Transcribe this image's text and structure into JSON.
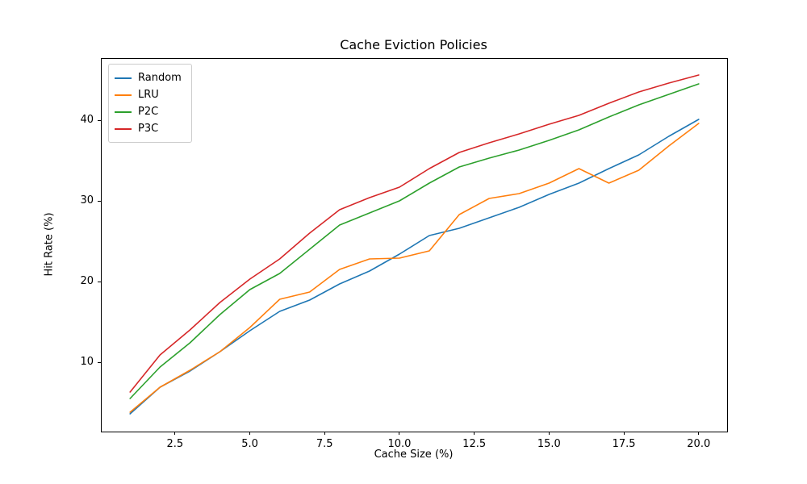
{
  "chart_data": {
    "type": "line",
    "title": "Cache Eviction Policies",
    "xlabel": "Cache Size (%)",
    "ylabel": "Hit Rate (%)",
    "grid": false,
    "legend_position": "upper left",
    "xlim": [
      0.05,
      20.95
    ],
    "ylim": [
      1.4,
      47.6
    ],
    "xticks": [
      2.5,
      5.0,
      7.5,
      10.0,
      12.5,
      15.0,
      17.5,
      20.0
    ],
    "xtick_labels": [
      "2.5",
      "5.0",
      "7.5",
      "10.0",
      "12.5",
      "15.0",
      "17.5",
      "20.0"
    ],
    "yticks": [
      10,
      20,
      30,
      40
    ],
    "ytick_labels": [
      "10",
      "20",
      "30",
      "40"
    ],
    "x": [
      1,
      2,
      3,
      4,
      5,
      6,
      7,
      8,
      9,
      10,
      11,
      12,
      13,
      14,
      15,
      16,
      17,
      18,
      19,
      20
    ],
    "series": [
      {
        "name": "Random",
        "color": "#1f77b4",
        "values": [
          3.6,
          6.9,
          8.9,
          11.3,
          13.9,
          16.3,
          17.7,
          19.7,
          21.3,
          23.4,
          25.7,
          26.6,
          27.9,
          29.2,
          30.8,
          32.2,
          34.0,
          35.7,
          38.0,
          40.1
        ]
      },
      {
        "name": "LRU",
        "color": "#ff7f0e",
        "values": [
          3.8,
          6.9,
          9.0,
          11.3,
          14.3,
          17.8,
          18.7,
          21.5,
          22.8,
          22.9,
          23.8,
          28.3,
          30.3,
          30.9,
          32.2,
          34.0,
          32.2,
          33.8,
          36.8,
          39.6
        ]
      },
      {
        "name": "P2C",
        "color": "#2ca02c",
        "values": [
          5.5,
          9.4,
          12.4,
          15.9,
          19.0,
          21.0,
          24.0,
          27.0,
          28.5,
          30.0,
          32.2,
          34.2,
          35.3,
          36.3,
          37.5,
          38.8,
          40.4,
          41.9,
          43.2,
          44.5
        ]
      },
      {
        "name": "P3C",
        "color": "#d62728",
        "values": [
          6.3,
          10.9,
          14.0,
          17.4,
          20.3,
          22.8,
          26.0,
          28.9,
          30.4,
          31.7,
          34.0,
          36.0,
          37.2,
          38.3,
          39.5,
          40.6,
          42.1,
          43.5,
          44.6,
          45.6
        ]
      }
    ]
  }
}
